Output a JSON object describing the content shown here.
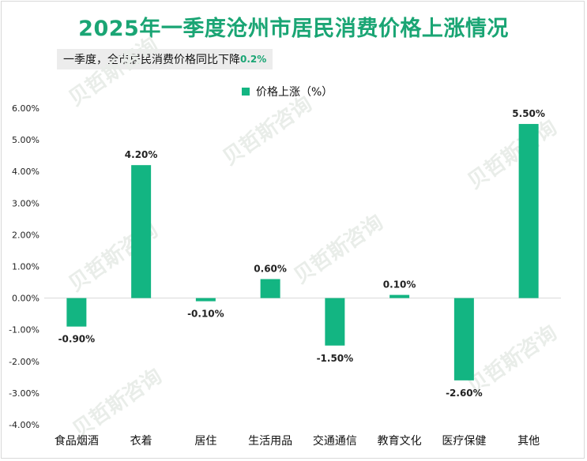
{
  "title": "2025年一季度沧州市居民消费价格上涨情况",
  "subtitle": {
    "text": "一季度，全市居民消费价格同比下降",
    "value": "0.2%"
  },
  "colors": {
    "accent": "#1aa574",
    "bar": "#13b582"
  },
  "chart_data": {
    "type": "bar",
    "title": "2025年一季度沧州市居民消费价格上涨情况",
    "categories": [
      "食品烟酒",
      "衣着",
      "居住",
      "生活用品",
      "交通通信",
      "教育文化",
      "医疗保健",
      "其他"
    ],
    "series": [
      {
        "name": "价格上涨（%）",
        "values": [
          -0.9,
          4.2,
          -0.1,
          0.6,
          -1.5,
          0.1,
          -2.6,
          5.5
        ],
        "data_labels": [
          "-0.90%",
          "4.20%",
          "-0.10%",
          "0.60%",
          "-1.50%",
          "0.10%",
          "-2.60%",
          "5.50%"
        ]
      }
    ],
    "ylim": [
      -4.0,
      6.0
    ],
    "yticks": [
      6,
      5,
      4,
      3,
      2,
      1,
      0,
      -1,
      -2,
      -3,
      -4
    ],
    "ytick_labels": [
      "6.00%",
      "5.00%",
      "4.00%",
      "3.00%",
      "2.00%",
      "1.00%",
      "0.00%",
      "-1.00%",
      "-2.00%",
      "-3.00%",
      "-4.00%"
    ],
    "legend": "top-center",
    "grid": false,
    "xlabel": "",
    "ylabel": ""
  }
}
